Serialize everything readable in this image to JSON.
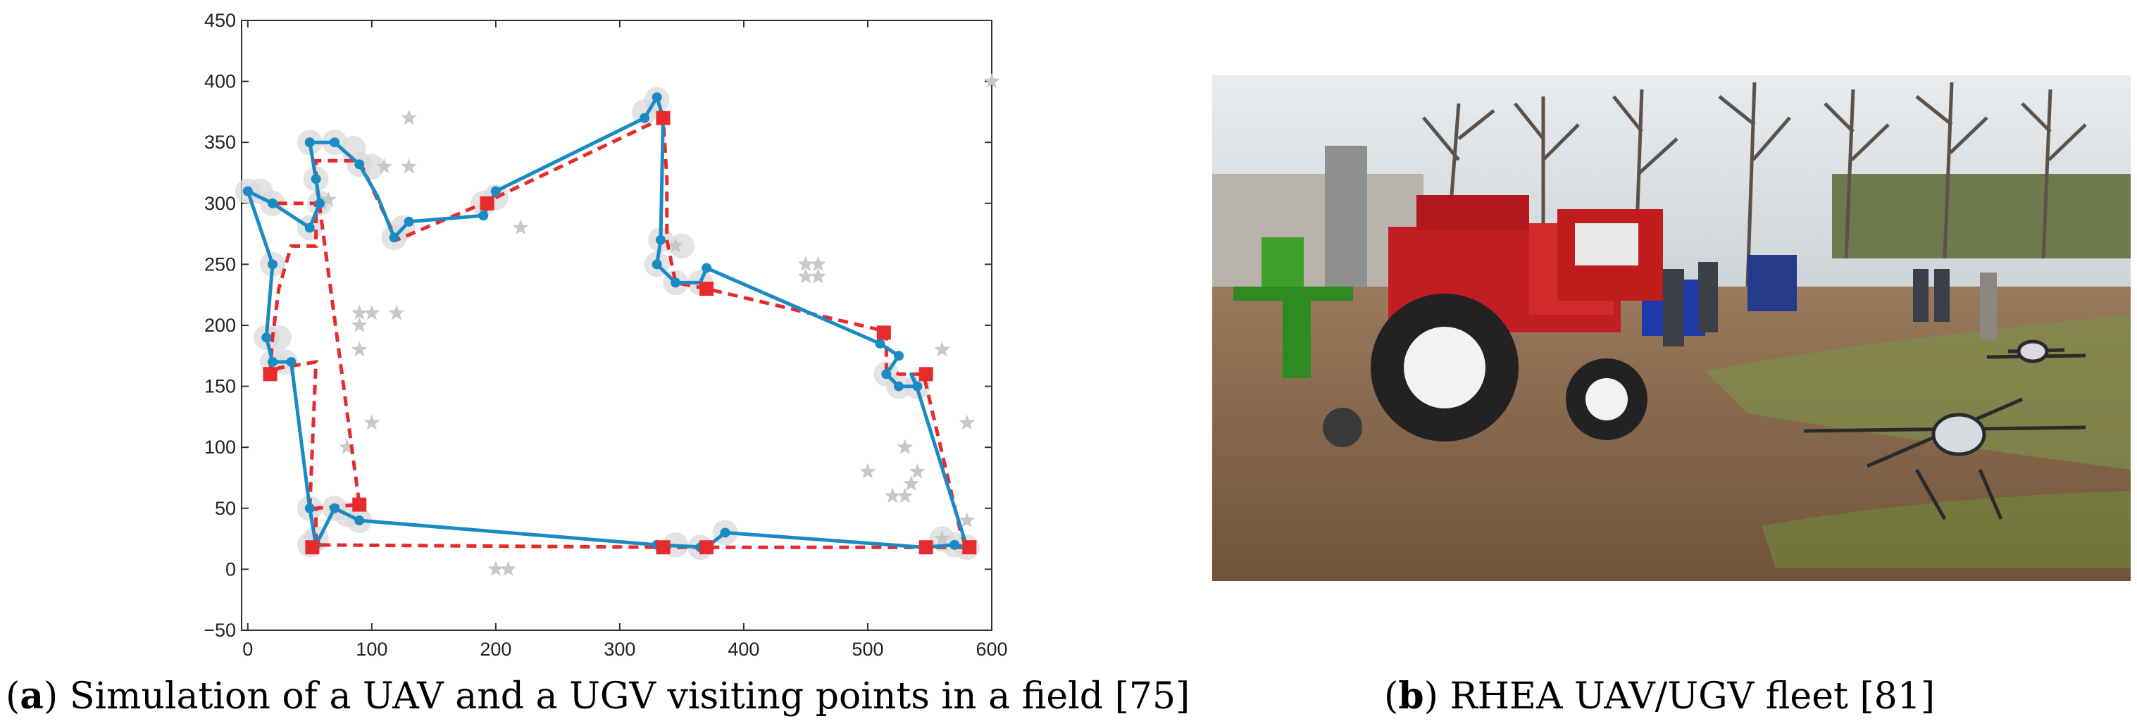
{
  "chart_data": {
    "type": "scatter",
    "xlim": [
      -5,
      600
    ],
    "ylim": [
      -50,
      450
    ],
    "xticks": [
      0,
      100,
      200,
      300,
      400,
      500,
      600
    ],
    "yticks": [
      -50,
      0,
      50,
      100,
      150,
      200,
      250,
      300,
      350,
      400,
      450
    ],
    "grid": false,
    "colors": {
      "uav_path": "#1a8ac6",
      "ugv_path": "#e52b2b",
      "ugv_stop": "#e52b2b",
      "target": "#c8c8c8",
      "halo": "#d9d9d9"
    },
    "uav_path": [
      [
        0,
        310
      ],
      [
        20,
        300
      ],
      [
        50,
        280
      ],
      [
        58,
        300
      ],
      [
        55,
        320
      ],
      [
        50,
        350
      ],
      [
        70,
        350
      ],
      [
        90,
        332
      ],
      [
        105,
        305
      ],
      [
        118,
        272
      ],
      [
        130,
        285
      ],
      [
        190,
        290
      ],
      [
        200,
        310
      ],
      [
        320,
        370
      ],
      [
        330,
        387
      ],
      [
        335,
        370
      ],
      [
        333,
        270
      ],
      [
        330,
        250
      ],
      [
        345,
        235
      ],
      [
        365,
        235
      ],
      [
        370,
        247
      ],
      [
        510,
        185
      ],
      [
        525,
        175
      ],
      [
        515,
        160
      ],
      [
        525,
        150
      ],
      [
        540,
        150
      ],
      [
        535,
        160
      ],
      [
        540,
        148
      ],
      [
        580,
        18
      ],
      [
        570,
        20
      ],
      [
        545,
        18
      ],
      [
        385,
        30
      ],
      [
        370,
        18
      ],
      [
        330,
        20
      ],
      [
        90,
        40
      ],
      [
        70,
        50
      ],
      [
        55,
        20
      ],
      [
        50,
        50
      ],
      [
        35,
        170
      ],
      [
        20,
        170
      ],
      [
        15,
        190
      ],
      [
        20,
        250
      ],
      [
        0,
        310
      ]
    ],
    "ugv_path": [
      [
        0,
        310
      ],
      [
        20,
        300
      ],
      [
        55,
        300
      ],
      [
        55,
        265
      ],
      [
        35,
        265
      ],
      [
        25,
        230
      ],
      [
        20,
        190
      ],
      [
        18,
        160
      ],
      [
        25,
        165
      ],
      [
        55,
        170
      ],
      [
        50,
        50
      ],
      [
        55,
        20
      ],
      [
        55,
        50
      ],
      [
        90,
        53
      ],
      [
        55,
        320
      ],
      [
        55,
        335
      ],
      [
        90,
        335
      ],
      [
        120,
        270
      ],
      [
        190,
        300
      ],
      [
        335,
        370
      ],
      [
        338,
        320
      ],
      [
        338,
        270
      ],
      [
        345,
        235
      ],
      [
        370,
        230
      ],
      [
        515,
        195
      ],
      [
        515,
        165
      ],
      [
        525,
        160
      ],
      [
        545,
        160
      ],
      [
        575,
        30
      ],
      [
        580,
        18
      ],
      [
        545,
        18
      ],
      [
        370,
        18
      ],
      [
        335,
        18
      ],
      [
        55,
        20
      ]
    ],
    "ugv_stops": [
      [
        18,
        160
      ],
      [
        52,
        18
      ],
      [
        90,
        53
      ],
      [
        193,
        300
      ],
      [
        335,
        370
      ],
      [
        370,
        230
      ],
      [
        513,
        194
      ],
      [
        547,
        160
      ],
      [
        335,
        18
      ],
      [
        370,
        18
      ],
      [
        547,
        18
      ],
      [
        582,
        18
      ]
    ],
    "uav_waypoints": [
      [
        0,
        310
      ],
      [
        20,
        300
      ],
      [
        50,
        280
      ],
      [
        58,
        300
      ],
      [
        55,
        320
      ],
      [
        50,
        350
      ],
      [
        70,
        350
      ],
      [
        90,
        332
      ],
      [
        118,
        272
      ],
      [
        130,
        285
      ],
      [
        190,
        290
      ],
      [
        200,
        310
      ],
      [
        320,
        370
      ],
      [
        330,
        387
      ],
      [
        333,
        270
      ],
      [
        330,
        250
      ],
      [
        345,
        235
      ],
      [
        370,
        247
      ],
      [
        510,
        185
      ],
      [
        525,
        175
      ],
      [
        515,
        160
      ],
      [
        525,
        150
      ],
      [
        540,
        150
      ],
      [
        580,
        18
      ],
      [
        570,
        20
      ],
      [
        545,
        18
      ],
      [
        385,
        30
      ],
      [
        365,
        18
      ],
      [
        330,
        20
      ],
      [
        90,
        40
      ],
      [
        70,
        50
      ],
      [
        55,
        20
      ],
      [
        50,
        50
      ],
      [
        35,
        170
      ],
      [
        20,
        170
      ],
      [
        15,
        190
      ],
      [
        20,
        250
      ]
    ],
    "halos": [
      [
        0,
        310
      ],
      [
        10,
        310
      ],
      [
        20,
        300
      ],
      [
        50,
        280
      ],
      [
        58,
        300
      ],
      [
        55,
        320
      ],
      [
        50,
        350
      ],
      [
        70,
        350
      ],
      [
        85,
        345
      ],
      [
        90,
        332
      ],
      [
        100,
        330
      ],
      [
        118,
        272
      ],
      [
        125,
        280
      ],
      [
        190,
        300
      ],
      [
        200,
        305
      ],
      [
        320,
        375
      ],
      [
        330,
        385
      ],
      [
        333,
        270
      ],
      [
        330,
        250
      ],
      [
        345,
        235
      ],
      [
        350,
        265
      ],
      [
        365,
        235
      ],
      [
        515,
        160
      ],
      [
        525,
        150
      ],
      [
        540,
        150
      ],
      [
        580,
        18
      ],
      [
        570,
        20
      ],
      [
        560,
        25
      ],
      [
        385,
        30
      ],
      [
        365,
        18
      ],
      [
        345,
        20
      ],
      [
        90,
        40
      ],
      [
        70,
        50
      ],
      [
        80,
        45
      ],
      [
        50,
        20
      ],
      [
        55,
        25
      ],
      [
        50,
        50
      ],
      [
        30,
        170
      ],
      [
        20,
        170
      ],
      [
        15,
        190
      ],
      [
        25,
        190
      ],
      [
        20,
        250
      ]
    ],
    "targets": [
      [
        130,
        370
      ],
      [
        220,
        280
      ],
      [
        90,
        210
      ],
      [
        100,
        210
      ],
      [
        120,
        210
      ],
      [
        90,
        200
      ],
      [
        90,
        180
      ],
      [
        100,
        120
      ],
      [
        80,
        100
      ],
      [
        450,
        250
      ],
      [
        460,
        250
      ],
      [
        450,
        240
      ],
      [
        460,
        240
      ],
      [
        530,
        100
      ],
      [
        500,
        80
      ],
      [
        520,
        60
      ],
      [
        530,
        60
      ],
      [
        535,
        70
      ],
      [
        540,
        80
      ],
      [
        560,
        180
      ],
      [
        580,
        120
      ],
      [
        580,
        40
      ],
      [
        200,
        0
      ],
      [
        210,
        0
      ],
      [
        600,
        400
      ],
      [
        60,
        300
      ],
      [
        65,
        303
      ],
      [
        130,
        330
      ],
      [
        110,
        330
      ],
      [
        345,
        265
      ],
      [
        560,
        25
      ]
    ]
  },
  "captions": {
    "a_letter": "a",
    "a_text": "Simulation of a UAV and a UGV visiting points in a field [75]",
    "b_letter": "b",
    "b_text": "RHEA UAV/UGV fleet [81]"
  }
}
